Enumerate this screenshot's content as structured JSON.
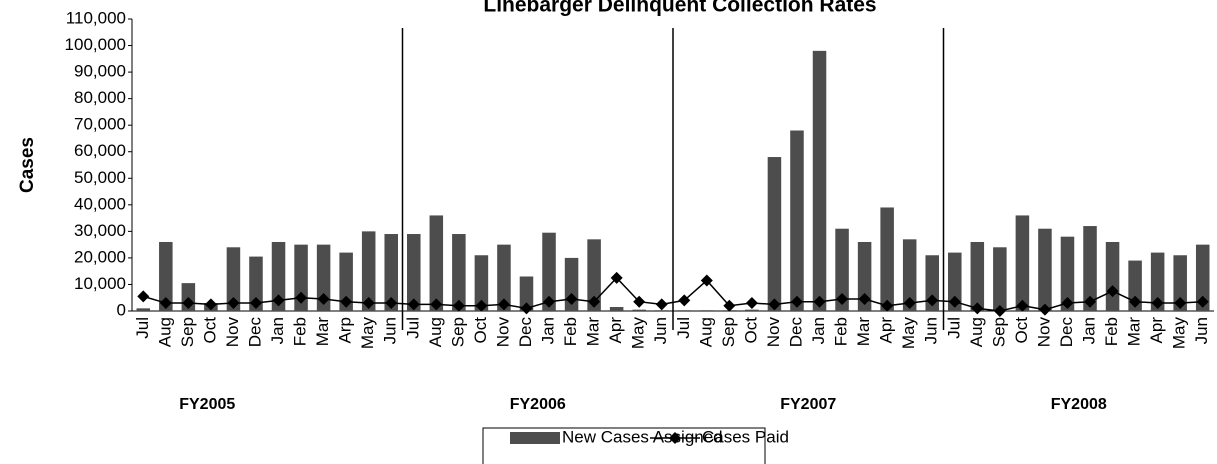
{
  "chart_data": {
    "type": "bar",
    "title": "Linebarger Delinquent Collection Rates",
    "y_label": "Cases",
    "categories": [
      "Jul",
      "Aug",
      "Sep",
      "Oct",
      "Nov",
      "Dec",
      "Jan",
      "Feb",
      "Mar",
      "Arp",
      "May",
      "Jun",
      "Jul",
      "Aug",
      "Sep",
      "Oct",
      "Nov",
      "Dec",
      "Jan",
      "Feb",
      "Mar",
      "Apr",
      "May",
      "Jun",
      "Jul",
      "Aug",
      "Sep",
      "Oct",
      "Nov",
      "Dec",
      "Jan",
      "Feb",
      "Mar",
      "Apr",
      "May",
      "Jun",
      "Jul",
      "Aug",
      "Sep",
      "Oct",
      "Nov",
      "Dec",
      "Jan",
      "Feb",
      "Mar",
      "Apr",
      "May",
      "Jun"
    ],
    "group_labels": [
      "FY2005",
      "FY2006",
      "FY2007",
      "FY2008"
    ],
    "series": [
      {
        "name": "New Cases Assigned",
        "type": "bar",
        "color": "#4d4d4d",
        "values": [
          1000,
          26000,
          10500,
          3000,
          24000,
          20500,
          26000,
          25000,
          25000,
          22000,
          30000,
          29000,
          29000,
          36000,
          29000,
          21000,
          25000,
          13000,
          29500,
          20000,
          27000,
          1500,
          500,
          300,
          300,
          300,
          300,
          500,
          58000,
          68000,
          98000,
          31000,
          26000,
          39000,
          27000,
          21000,
          22000,
          26000,
          24000,
          36000,
          31000,
          28000,
          32000,
          26000,
          19000,
          22000,
          21000,
          25000
        ]
      },
      {
        "name": "Cases Paid",
        "type": "line",
        "color": "#000000",
        "values": [
          5500,
          3000,
          3000,
          2500,
          3000,
          3000,
          4000,
          5000,
          4500,
          3500,
          3000,
          3000,
          2500,
          2500,
          2000,
          2000,
          2500,
          1000,
          3500,
          4500,
          3500,
          12500,
          3500,
          2500,
          4000,
          11500,
          2000,
          3000,
          2500,
          3500,
          3500,
          4500,
          4500,
          2000,
          3000,
          4000,
          3500,
          1000,
          0,
          2000,
          500,
          3000,
          3500,
          7500,
          3500,
          3000,
          3000,
          3500
        ]
      }
    ],
    "ylim": [
      0,
      110000
    ],
    "yticks": [
      0,
      {
        "value": 10000,
        "label": "10,000"
      },
      {
        "value": 20000,
        "label": "20,000"
      },
      {
        "value": 30000,
        "label": "30,000"
      },
      {
        "value": 40000,
        "label": "40,000"
      },
      {
        "value": 50000,
        "label": "50,000"
      },
      {
        "value": 60000,
        "label": "60,000"
      },
      {
        "value": 70000,
        "label": "70,000"
      },
      {
        "value": 80000,
        "label": "80,000"
      },
      {
        "value": 90000,
        "label": "90,000"
      },
      {
        "value": 100000,
        "label": "100,000"
      },
      {
        "value": 110000,
        "label": "110,000"
      }
    ],
    "legend": "bottom"
  }
}
